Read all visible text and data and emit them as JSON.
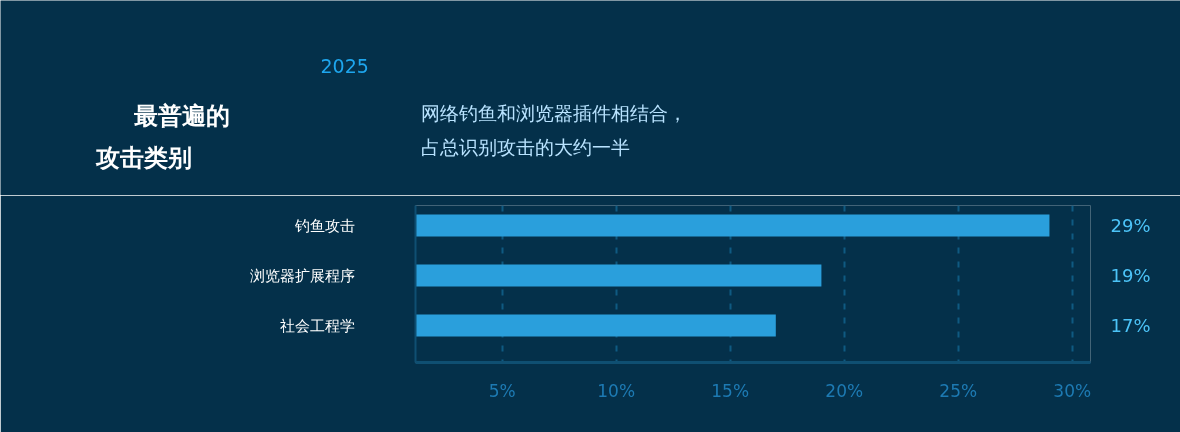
{
  "chart_data": {
    "type": "bar",
    "orientation": "horizontal",
    "title": "最普遍的攻击类别",
    "subtitle": "网络钓鱼和浏览器插件相结合，占总识别攻击的大约一半",
    "annotations": [
      "2025"
    ],
    "categories": [
      "钓鱼攻击",
      "浏览器扩展程序",
      "社会工程学"
    ],
    "values": [
      29,
      19,
      17
    ],
    "color": "#2a9fdc",
    "xlim": [
      1.2,
      30.8
    ],
    "xticks": [
      {
        "value": 5,
        "label": "5%"
      },
      {
        "value": 10,
        "label": "10%"
      },
      {
        "value": 15,
        "label": "15%"
      },
      {
        "value": 20,
        "label": "20%"
      },
      {
        "value": 25,
        "label": "25%"
      },
      {
        "value": 30,
        "label": "30%"
      }
    ],
    "data_labels": true,
    "value_labels": [
      "29%",
      "19%",
      "17%"
    ],
    "grid": "x",
    "legend": false
  }
}
